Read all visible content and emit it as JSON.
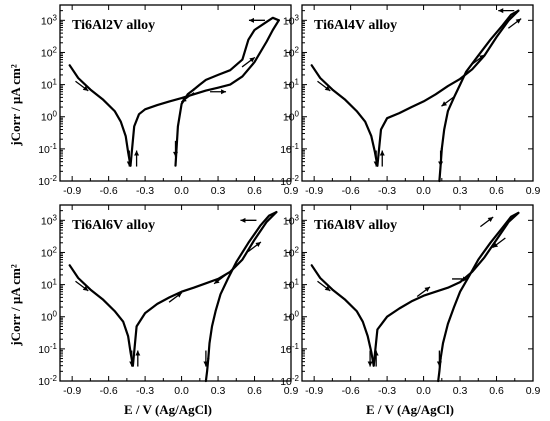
{
  "ylabel": "jCorr / µA cm²",
  "xlabel": "E / V (Ag/AgCl)",
  "chart_data": [
    {
      "type": "line",
      "title": "Ti6Al2V alloy",
      "xlim": [
        -1.0,
        0.9
      ],
      "ylim": [
        0.01,
        3000
      ],
      "yscale": "log",
      "xticks": [
        "-0.9",
        "-0.6",
        "-0.3",
        "0.0",
        "0.3",
        "0.6",
        "0.9"
      ],
      "yticks": [
        "10-2",
        "10-1",
        "100",
        "101",
        "102",
        "103"
      ],
      "series": [
        {
          "x": [
            -0.92,
            -0.85,
            -0.75,
            -0.65,
            -0.55,
            -0.5,
            -0.46,
            -0.44,
            -0.42
          ],
          "y": [
            40,
            16,
            7,
            3.5,
            1.5,
            0.7,
            0.25,
            0.08,
            0.03
          ]
        },
        {
          "x": [
            -0.42,
            -0.39,
            -0.35,
            -0.3,
            -0.2,
            -0.1,
            0.0,
            0.1,
            0.2,
            0.3,
            0.4,
            0.5,
            0.6,
            0.7,
            0.75,
            0.8
          ],
          "y": [
            0.03,
            0.5,
            1.2,
            1.7,
            2.3,
            3.0,
            3.8,
            5,
            6.5,
            8,
            10,
            18,
            50,
            220,
            500,
            1000
          ]
        },
        {
          "x": [
            0.8,
            0.75,
            0.7,
            0.6,
            0.55,
            0.5,
            0.4,
            0.3,
            0.2,
            0.15,
            0.1
          ],
          "y": [
            1000,
            1200,
            900,
            500,
            250,
            60,
            28,
            20,
            14,
            10,
            7
          ]
        },
        {
          "x": [
            0.1,
            0.05,
            0.0,
            -0.03,
            -0.05
          ],
          "y": [
            7,
            5,
            2.5,
            0.5,
            0.03
          ]
        }
      ],
      "arrows": [
        {
          "x": -0.82,
          "y": 9,
          "dir": "down-right"
        },
        {
          "x": -0.43,
          "y": 0.05,
          "dir": "down"
        },
        {
          "x": -0.37,
          "y": 0.05,
          "dir": "up"
        },
        {
          "x": 0.62,
          "y": 1000,
          "dir": "left"
        },
        {
          "x": 0.55,
          "y": 50,
          "dir": "up-right"
        },
        {
          "x": 0.3,
          "y": 6,
          "dir": "right"
        },
        {
          "x": 0.05,
          "y": 4,
          "dir": "down-left"
        },
        {
          "x": -0.05,
          "y": 0.1,
          "dir": "down"
        }
      ]
    },
    {
      "type": "line",
      "title": "Ti6Al4V alloy",
      "xlim": [
        -1.0,
        0.9
      ],
      "ylim": [
        0.01,
        3000
      ],
      "yscale": "log",
      "xticks": [
        "-0.9",
        "-0.6",
        "-0.3",
        "0.0",
        "0.3",
        "0.6",
        "0.9"
      ],
      "yticks": [
        "10-2",
        "10-1",
        "100",
        "101",
        "102",
        "103"
      ],
      "series": [
        {
          "x": [
            -0.92,
            -0.85,
            -0.75,
            -0.65,
            -0.55,
            -0.48,
            -0.43,
            -0.4,
            -0.38
          ],
          "y": [
            40,
            16,
            7,
            3.5,
            1.5,
            0.7,
            0.25,
            0.08,
            0.03
          ]
        },
        {
          "x": [
            -0.38,
            -0.35,
            -0.3,
            -0.2,
            -0.1,
            0.0,
            0.1,
            0.2,
            0.3,
            0.4,
            0.5,
            0.6,
            0.7,
            0.78
          ],
          "y": [
            0.03,
            0.4,
            0.9,
            1.3,
            2,
            3,
            5,
            9,
            15,
            30,
            80,
            300,
            1000,
            2000
          ]
        },
        {
          "x": [
            0.78,
            0.72,
            0.65,
            0.55,
            0.45,
            0.35,
            0.3,
            0.25,
            0.2,
            0.17,
            0.15
          ],
          "y": [
            2000,
            1500,
            700,
            250,
            80,
            25,
            10,
            4,
            1.5,
            0.4,
            0.1
          ]
        },
        {
          "x": [
            0.15,
            0.14,
            0.13
          ],
          "y": [
            0.1,
            0.03,
            0.01
          ]
        }
      ],
      "arrows": [
        {
          "x": -0.82,
          "y": 9,
          "dir": "down-right"
        },
        {
          "x": -0.39,
          "y": 0.05,
          "dir": "down"
        },
        {
          "x": -0.34,
          "y": 0.05,
          "dir": "up"
        },
        {
          "x": 0.68,
          "y": 2000,
          "dir": "left"
        },
        {
          "x": 0.75,
          "y": 800,
          "dir": "up-right"
        },
        {
          "x": 0.45,
          "y": 60,
          "dir": "up-right"
        },
        {
          "x": 0.2,
          "y": 3,
          "dir": "down-left"
        },
        {
          "x": 0.14,
          "y": 0.05,
          "dir": "down"
        }
      ]
    },
    {
      "type": "line",
      "title": "Ti6Al6V alloy",
      "xlim": [
        -1.0,
        0.9
      ],
      "ylim": [
        0.01,
        3000
      ],
      "yscale": "log",
      "xticks": [
        "-0.9",
        "-0.6",
        "-0.3",
        "0.0",
        "0.3",
        "0.6",
        "0.9"
      ],
      "yticks": [
        "10-2",
        "10-1",
        "100",
        "101",
        "102",
        "103"
      ],
      "series": [
        {
          "x": [
            -0.92,
            -0.85,
            -0.75,
            -0.65,
            -0.55,
            -0.48,
            -0.44,
            -0.42,
            -0.4
          ],
          "y": [
            40,
            16,
            7,
            3.5,
            1.5,
            0.7,
            0.25,
            0.08,
            0.03
          ]
        },
        {
          "x": [
            -0.4,
            -0.37,
            -0.3,
            -0.2,
            -0.1,
            0.0,
            0.1,
            0.2,
            0.3,
            0.4,
            0.5,
            0.6,
            0.7,
            0.78
          ],
          "y": [
            0.03,
            0.5,
            1.3,
            2.5,
            4,
            6,
            8,
            11,
            15,
            25,
            60,
            250,
            900,
            1800
          ]
        },
        {
          "x": [
            0.78,
            0.72,
            0.65,
            0.55,
            0.45,
            0.38,
            0.32,
            0.28,
            0.25,
            0.23,
            0.22
          ],
          "y": [
            1800,
            1400,
            700,
            200,
            50,
            15,
            5,
            1.5,
            0.5,
            0.15,
            0.05
          ]
        },
        {
          "x": [
            0.22,
            0.21,
            0.2
          ],
          "y": [
            0.05,
            0.02,
            0.01
          ]
        }
      ],
      "arrows": [
        {
          "x": -0.82,
          "y": 9,
          "dir": "down-right"
        },
        {
          "x": -0.41,
          "y": 0.05,
          "dir": "down"
        },
        {
          "x": -0.36,
          "y": 0.05,
          "dir": "up"
        },
        {
          "x": -0.05,
          "y": 4,
          "dir": "up-right"
        },
        {
          "x": 0.55,
          "y": 1000,
          "dir": "left"
        },
        {
          "x": 0.6,
          "y": 150,
          "dir": "up-right"
        },
        {
          "x": 0.32,
          "y": 15,
          "dir": "down-left"
        },
        {
          "x": 0.2,
          "y": 0.05,
          "dir": "down"
        }
      ]
    },
    {
      "type": "line",
      "title": "Ti6Al8V alloy",
      "xlim": [
        -1.0,
        0.9
      ],
      "ylim": [
        0.01,
        3000
      ],
      "yscale": "log",
      "xticks": [
        "-0.9",
        "-0.6",
        "-0.3",
        "0.0",
        "0.3",
        "0.6",
        "0.9"
      ],
      "yticks": [
        "10-2",
        "10-1",
        "100",
        "101",
        "102",
        "103"
      ],
      "series": [
        {
          "x": [
            -0.92,
            -0.85,
            -0.75,
            -0.65,
            -0.55,
            -0.5,
            -0.46,
            -0.43,
            -0.41
          ],
          "y": [
            40,
            16,
            7,
            3.5,
            1.5,
            0.7,
            0.25,
            0.08,
            0.03
          ]
        },
        {
          "x": [
            -0.41,
            -0.38,
            -0.3,
            -0.2,
            -0.1,
            0.0,
            0.1,
            0.2,
            0.3,
            0.4,
            0.5,
            0.6,
            0.7,
            0.78
          ],
          "y": [
            0.03,
            0.4,
            1,
            1.8,
            3,
            4.5,
            6,
            8,
            12,
            25,
            70,
            250,
            900,
            1700
          ]
        },
        {
          "x": [
            0.78,
            0.72,
            0.65,
            0.55,
            0.45,
            0.38,
            0.3,
            0.25,
            0.2,
            0.16,
            0.14
          ],
          "y": [
            1700,
            1300,
            600,
            200,
            60,
            20,
            6,
            2,
            0.6,
            0.15,
            0.05
          ]
        },
        {
          "x": [
            0.14,
            0.13,
            0.12
          ],
          "y": [
            0.05,
            0.02,
            0.01
          ]
        }
      ],
      "arrows": [
        {
          "x": -0.82,
          "y": 9,
          "dir": "down-right"
        },
        {
          "x": -0.44,
          "y": 0.05,
          "dir": "down"
        },
        {
          "x": -0.39,
          "y": 0.05,
          "dir": "up"
        },
        {
          "x": 0.0,
          "y": 6,
          "dir": "up-right"
        },
        {
          "x": 0.3,
          "y": 15,
          "dir": "right"
        },
        {
          "x": 0.52,
          "y": 900,
          "dir": "up-right"
        },
        {
          "x": 0.62,
          "y": 200,
          "dir": "down-left"
        },
        {
          "x": 0.13,
          "y": 0.05,
          "dir": "down"
        }
      ]
    }
  ]
}
